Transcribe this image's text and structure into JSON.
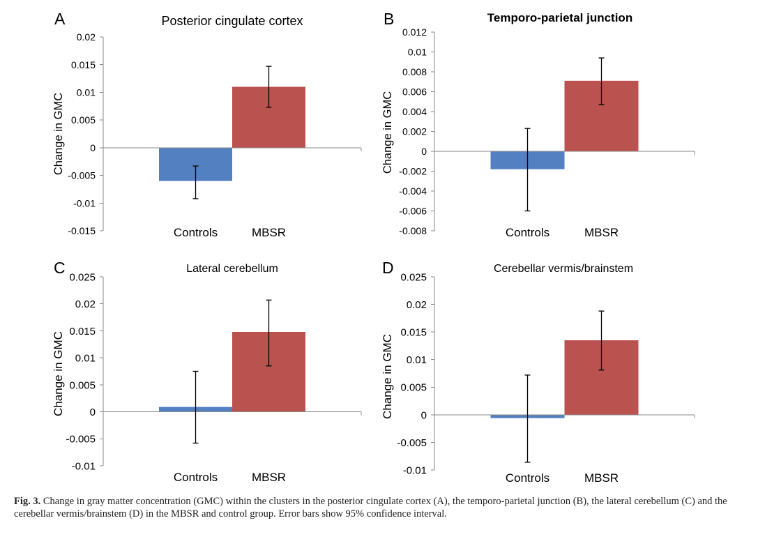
{
  "chart_data": [
    {
      "panel_label": "A",
      "type": "bar",
      "title": "Posterior cingulate cortex",
      "ylabel": "Change in GMC",
      "categories": [
        "Controls",
        "MBSR"
      ],
      "values": [
        -0.006,
        0.011
      ],
      "ci_lower": [
        -0.0092,
        0.0073
      ],
      "ci_upper": [
        -0.0033,
        0.0147
      ],
      "ylim": [
        -0.015,
        0.02
      ],
      "yticks": [
        "0.02",
        "0.015",
        "0.01",
        "0.005",
        "0",
        "-0.005",
        "-0.01",
        "-0.015"
      ],
      "colors": [
        "#5280C0",
        "#BA524F"
      ]
    },
    {
      "panel_label": "B",
      "type": "bar",
      "title": "Temporo-parietal junction",
      "ylabel": "Change in GMC",
      "categories": [
        "Controls",
        "MBSR"
      ],
      "values": [
        -0.0018,
        0.0071
      ],
      "ci_lower": [
        -0.006,
        0.0047
      ],
      "ci_upper": [
        0.0023,
        0.0094
      ],
      "ylim": [
        -0.008,
        0.012
      ],
      "yticks": [
        "0.012",
        "0.01",
        "0.008",
        "0.006",
        "0.004",
        "0.002",
        "0",
        "-0.002",
        "-0.004",
        "-0.006",
        "-0.008"
      ],
      "colors": [
        "#5280C0",
        "#BA524F"
      ]
    },
    {
      "panel_label": "C",
      "type": "bar",
      "title": "Lateral cerebellum",
      "ylabel": "Change in GMC",
      "categories": [
        "Controls",
        "MBSR"
      ],
      "values": [
        0.0009,
        0.0148
      ],
      "ci_lower": [
        -0.0058,
        0.0085
      ],
      "ci_upper": [
        0.0075,
        0.0207
      ],
      "ylim": [
        -0.01,
        0.025
      ],
      "yticks": [
        "0.025",
        "0.02",
        "0.015",
        "0.01",
        "0.005",
        "0",
        "-0.005",
        "-0.01"
      ],
      "colors": [
        "#5280C0",
        "#BA524F"
      ]
    },
    {
      "panel_label": "D",
      "type": "bar",
      "title": "Cerebellar vermis/brainstem",
      "ylabel": "Change in GMC",
      "categories": [
        "Controls",
        "MBSR"
      ],
      "values": [
        -0.0006,
        0.0135
      ],
      "ci_lower": [
        -0.0086,
        0.0081
      ],
      "ci_upper": [
        0.0072,
        0.0188
      ],
      "ylim": [
        -0.01,
        0.025
      ],
      "yticks": [
        "0.025",
        "0.02",
        "0.015",
        "0.01",
        "0.005",
        "0",
        "-0.005",
        "-0.01"
      ],
      "colors": [
        "#5280C0",
        "#BA524F"
      ]
    }
  ],
  "caption": {
    "label": "Fig. 3.",
    "text": "Change in gray matter concentration (GMC) within the clusters in the posterior cingulate cortex (A), the temporo-parietal junction (B), the lateral cerebellum (C) and the cerebellar vermis/brainstem (D) in the MBSR and control group. Error bars show 95% confidence interval."
  }
}
